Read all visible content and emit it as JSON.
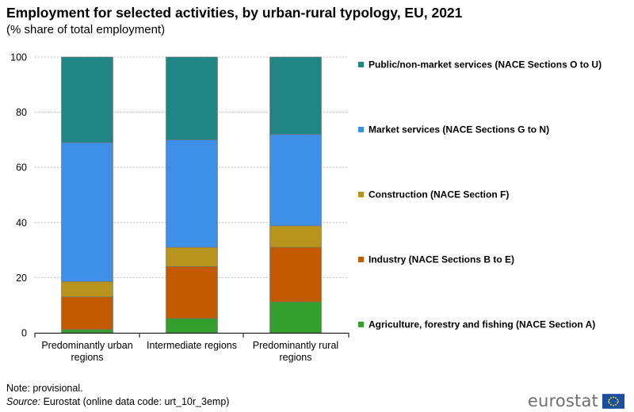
{
  "title": "Employment for selected activities, by urban-rural typology, EU, 2021",
  "subtitle": "(% share of total employment)",
  "note": "Note: provisional.",
  "source_label": "Source:",
  "source_text": " Eurostat (online data code: urt_10r_3emp)",
  "logo_text": "eurostat",
  "chart_data": {
    "type": "bar",
    "stacked": true,
    "title": "Employment for selected activities, by urban-rural typology, EU, 2021",
    "subtitle": "(% share of total employment)",
    "categories": [
      [
        "Predominantly urban",
        "regions"
      ],
      [
        "Intermediate regions"
      ],
      [
        "Predominantly rural",
        "regions"
      ]
    ],
    "ylim": [
      0,
      100
    ],
    "yticks": [
      0,
      20,
      40,
      60,
      80,
      100
    ],
    "grid": true,
    "legend_position": "right",
    "series": [
      {
        "name": "Agriculture, forestry and fishing (NACE Section A)",
        "color": "#33a02c",
        "values": [
          1.2,
          5.2,
          11.2
        ]
      },
      {
        "name": "Industry (NACE Sections B to E)",
        "color": "#c45a00",
        "values": [
          11.8,
          18.8,
          19.8
        ]
      },
      {
        "name": "Construction (NACE Section F)",
        "color": "#b8941f",
        "values": [
          5.6,
          7.0,
          7.8
        ]
      },
      {
        "name": "Market services (NACE Sections G to N)",
        "color": "#3d8fe8",
        "values": [
          50.4,
          39.0,
          33.2
        ]
      },
      {
        "name": "Public/non-market services (NACE Sections O to U)",
        "color": "#1f8585",
        "values": [
          31.0,
          30.0,
          28.0
        ]
      }
    ]
  }
}
